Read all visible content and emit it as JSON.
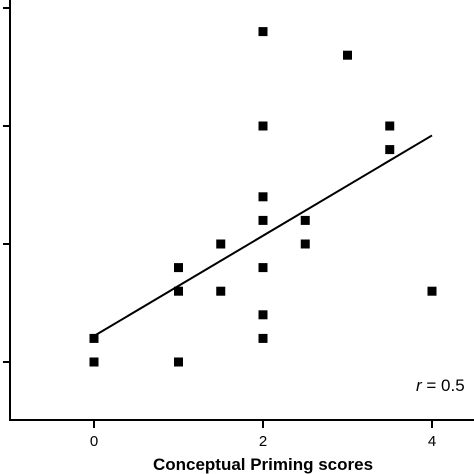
{
  "chart_data": {
    "type": "scatter",
    "title": "",
    "xlabel": "Conceptual Priming scores",
    "ylabel": "",
    "xlim": [
      -1,
      4.45
    ],
    "ylim": [
      -0.55,
      4.55
    ],
    "xticks": [
      0,
      2,
      4
    ],
    "xtick_labels": [
      "0",
      "2",
      "4"
    ],
    "yticks": [
      0,
      1,
      2,
      3
    ],
    "grid": false,
    "points": [
      {
        "x": 0,
        "y": 0.0
      },
      {
        "x": 0,
        "y": 0.2
      },
      {
        "x": 1,
        "y": 0.0
      },
      {
        "x": 1,
        "y": 0.6
      },
      {
        "x": 1,
        "y": 0.8
      },
      {
        "x": 1.5,
        "y": 0.6
      },
      {
        "x": 1.5,
        "y": 1.0
      },
      {
        "x": 2,
        "y": 0.2
      },
      {
        "x": 2,
        "y": 0.4
      },
      {
        "x": 2,
        "y": 0.8
      },
      {
        "x": 2,
        "y": 1.2
      },
      {
        "x": 2,
        "y": 1.4
      },
      {
        "x": 2,
        "y": 2.0
      },
      {
        "x": 2,
        "y": 2.8
      },
      {
        "x": 2.5,
        "y": 1.0
      },
      {
        "x": 2.5,
        "y": 1.2
      },
      {
        "x": 3,
        "y": 2.6
      },
      {
        "x": 3.5,
        "y": 1.8
      },
      {
        "x": 3.5,
        "y": 2.0
      },
      {
        "x": 4,
        "y": 0.6
      }
    ],
    "regression_line": {
      "x": [
        0,
        4
      ],
      "y": [
        0.22,
        1.92
      ]
    },
    "annotation": {
      "r_symbol": "r",
      "rest": " = 0.5"
    }
  }
}
